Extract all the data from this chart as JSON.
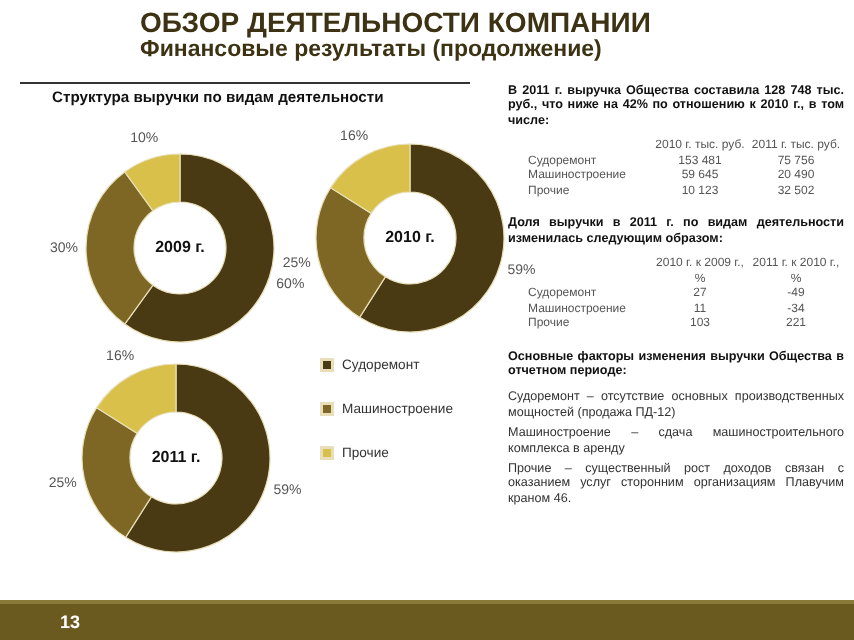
{
  "chart_data": [
    {
      "type": "other",
      "title": "ОБЗОР ДЕЯТЕЛЬНОСТИ КОМПАНИИ",
      "subtitle": "Финансовые результаты (продолжение)",
      "annotations": [
        "Структура выручки по видам деятельности",
        "13"
      ]
    },
    {
      "type": "donut",
      "categories": [
        null,
        null,
        null
      ],
      "values": [
        60,
        30,
        10
      ],
      "value_labels": [
        "60%",
        "30%",
        "10%"
      ],
      "colors": [
        "#4a3a14",
        "#7e6724",
        "#d8c04a"
      ],
      "annotations": [
        "2009 г."
      ]
    },
    {
      "type": "donut",
      "categories": [
        null,
        null,
        null
      ],
      "values": [
        59,
        25,
        16
      ],
      "value_labels": [
        "59%",
        "25%",
        "16%"
      ],
      "colors": [
        "#4a3a14",
        "#7e6724",
        "#d8c04a"
      ],
      "annotations": [
        "2010 г."
      ]
    },
    {
      "type": "donut",
      "categories": [
        "Судоремонт",
        "Машиностроение",
        "Прочие"
      ],
      "values": [
        59,
        25,
        16
      ],
      "value_labels": [
        "59%",
        "25%",
        "16%"
      ],
      "colors": [
        "#4a3a14",
        "#7e6724",
        "#d8c04a"
      ],
      "annotations": [
        "2011 г."
      ],
      "legend": "right"
    },
    {
      "type": "other",
      "annotations": [
        "В 2011 г. выручка Общества составила 128 748 тыс. руб., что ниже на 42% по отношению к 2010 г., в том числе:",
        "\t2010 г. тыс. руб.\t2011 г. тыс. руб.",
        "Судоремонт\t153 481\t75 756",
        "Машиностроение\t59 645\t20 490",
        "Прочие\t10 123\t32 502",
        "Доля выручки в 2011 г. по видам деятельности изменилась следующим образом:",
        "\t2010 г. к 2009 г., %\t2011 г. к 2010 г., %",
        "Судоремонт\t27\t-49",
        "Машиностроение\t11\t-34",
        "Прочие\t103\t221",
        "Основные факторы изменения выручки Общества в отчетном периоде:",
        "Судоремонт – отсутствие основных производственных мощностей (продажа ПД-12)",
        "Машиностроение – сдача машиностроительного комплекса в аренду",
        "Прочие – существенный рост доходов связан с оказанием услуг сторонним организациям Плавучим краном 46."
      ]
    }
  ]
}
